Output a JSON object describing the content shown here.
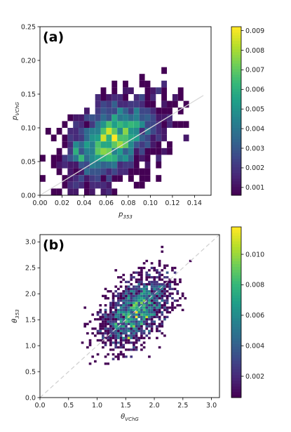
{
  "chart_data": [
    {
      "type": "heatmap",
      "panel_label": "(a)",
      "xlabel_main": "p",
      "xlabel_sub": "353",
      "ylabel_main": "p",
      "ylabel_sub": "VChG",
      "xlim": [
        0,
        0.155
      ],
      "ylim": [
        0,
        0.25
      ],
      "xticks": [
        "0.00",
        "0.02",
        "0.04",
        "0.06",
        "0.08",
        "0.10",
        "0.12",
        "0.14"
      ],
      "yticks": [
        "0.00",
        "0.05",
        "0.10",
        "0.15",
        "0.20",
        "0.25"
      ],
      "colorbar_ticks": [
        "0.001",
        "0.002",
        "0.003",
        "0.004",
        "0.005",
        "0.006",
        "0.007",
        "0.008",
        "0.009"
      ],
      "colorbar_range": [
        0.0006,
        0.0092
      ],
      "reference_line": {
        "style": "solid",
        "from": [
          0,
          0
        ],
        "to": [
          0.148,
          0.148
        ]
      },
      "grid": false,
      "colormap": "viridis",
      "distribution": {
        "mean_x": 0.066,
        "mean_y": 0.082,
        "sd_x": 0.022,
        "sd_y": 0.032,
        "corr": 0.45,
        "bin_x": 0.005,
        "bin_y": 0.01
      }
    },
    {
      "type": "heatmap",
      "panel_label": "(b)",
      "xlabel_main": "θ",
      "xlabel_sub": "VChG",
      "ylabel_main": "θ",
      "ylabel_sub": "353",
      "xlim": [
        0,
        3.14
      ],
      "ylim": [
        0,
        3.14
      ],
      "xticks": [
        "0.0",
        "0.5",
        "1.0",
        "1.5",
        "2.0",
        "2.5",
        "3.0"
      ],
      "yticks": [
        "0.0",
        "0.5",
        "1.0",
        "1.5",
        "2.0",
        "2.5",
        "3.0"
      ],
      "colorbar_ticks": [
        "0.002",
        "0.004",
        "0.006",
        "0.008",
        "0.010"
      ],
      "colorbar_range": [
        0.0006,
        0.0118
      ],
      "reference_line": {
        "style": "dashed",
        "from": [
          0,
          0
        ],
        "to": [
          3.14,
          3.14
        ]
      },
      "grid": false,
      "colormap": "viridis",
      "distribution": {
        "mean_x": 1.68,
        "mean_y": 1.68,
        "sd_x": 0.3,
        "sd_y": 0.35,
        "corr": 0.5,
        "bin_x": 0.045,
        "bin_y": 0.045
      }
    }
  ]
}
